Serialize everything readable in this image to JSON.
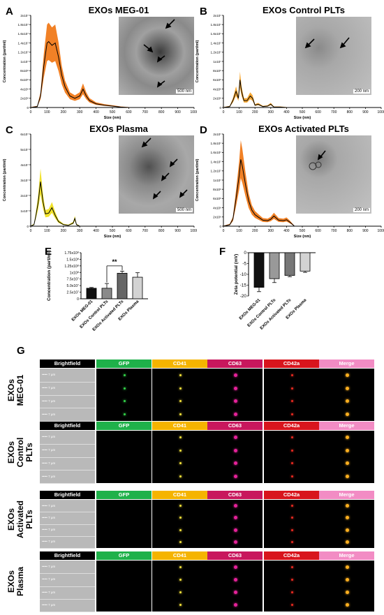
{
  "panels": {
    "A": {
      "letter": "A",
      "title": "EXOs MEG-01",
      "scale": "500 nm"
    },
    "B": {
      "letter": "B",
      "title": "EXOs Control PLTs",
      "scale": "200 nm"
    },
    "C": {
      "letter": "C",
      "title": "EXOs Plasma",
      "scale": "500 nm"
    },
    "D": {
      "letter": "D",
      "title": "EXOs Activated PLTs",
      "scale": "200 nm"
    },
    "E": {
      "letter": "E"
    },
    "F": {
      "letter": "F"
    },
    "G": {
      "letter": "G"
    }
  },
  "nta_axes": {
    "xlabel": "Size (nm)",
    "ylabel": "Concentration (part/ml)",
    "xticks": [
      "0",
      "100",
      "200",
      "300",
      "400",
      "500",
      "600",
      "700",
      "800",
      "900",
      "1000"
    ],
    "yticks_A": [
      "0",
      "2x10⁶",
      "4x10⁶",
      "6x10⁶",
      "8x10⁶",
      "1x10⁷",
      "1.2x10⁷",
      "1.4x10⁷",
      "1.6x10⁷",
      "1.8x10⁷",
      "2x10⁷"
    ],
    "yticks_C": [
      "0",
      "1x10⁷",
      "2x10⁷",
      "3x10⁷",
      "4x10⁷",
      "5x10⁷",
      "6x10⁷"
    ]
  },
  "chart_data": [
    {
      "type": "line",
      "panel": "A",
      "title": "EXOs MEG-01",
      "xlabel": "Size (nm)",
      "ylabel": "Concentration (part/ml)",
      "xlim": [
        0,
        1000
      ],
      "ylim": [
        0,
        20000000
      ],
      "color": "#f07a1a",
      "x": [
        0,
        40,
        60,
        80,
        100,
        110,
        130,
        150,
        170,
        190,
        210,
        240,
        270,
        300,
        320,
        340,
        360,
        400,
        450,
        500,
        550,
        600
      ],
      "y": [
        0,
        200000,
        2500000,
        9000000,
        14000000,
        14300000,
        13500000,
        14000000,
        11000000,
        7000000,
        4500000,
        2500000,
        2000000,
        2500000,
        4000000,
        2500000,
        1500000,
        800000,
        500000,
        300000,
        100000,
        0
      ]
    },
    {
      "type": "line",
      "panel": "B",
      "title": "EXOs Control PLTs",
      "xlabel": "Size (nm)",
      "ylabel": "Concentration (part/ml)",
      "xlim": [
        0,
        1000
      ],
      "ylim": [
        0,
        20000000
      ],
      "color": "#f5a32a",
      "x": [
        0,
        40,
        60,
        80,
        95,
        105,
        115,
        130,
        150,
        170,
        185,
        200,
        220,
        250,
        280,
        300,
        320,
        360,
        400
      ],
      "y": [
        0,
        200000,
        1500000,
        3500000,
        2000000,
        6000000,
        3500000,
        1500000,
        1500000,
        2500000,
        2000000,
        500000,
        700000,
        200000,
        300000,
        700000,
        100000,
        100000,
        0
      ]
    },
    {
      "type": "line",
      "panel": "C",
      "title": "EXOs Plasma",
      "xlabel": "Size (nm)",
      "ylabel": "Concentration (part/ml)",
      "xlim": [
        0,
        1000
      ],
      "ylim": [
        0,
        60000000
      ],
      "color": "#f0e020",
      "x": [
        0,
        20,
        30,
        45,
        60,
        75,
        90,
        110,
        130,
        150,
        170,
        200,
        230,
        260,
        270,
        280,
        300
      ],
      "y": [
        0,
        1000000,
        6000000,
        15000000,
        29000000,
        16000000,
        8000000,
        8500000,
        12000000,
        7000000,
        3000000,
        1000000,
        500000,
        2000000,
        5000000,
        1000000,
        0
      ]
    },
    {
      "type": "line",
      "panel": "D",
      "title": "EXOs Activated PLTs",
      "xlabel": "Size (nm)",
      "ylabel": "Concentration (part/ml)",
      "xlim": [
        0,
        1000
      ],
      "ylim": [
        0,
        20000000
      ],
      "color": "#f07a1a",
      "x": [
        0,
        40,
        60,
        80,
        100,
        110,
        120,
        140,
        160,
        180,
        200,
        220,
        250,
        280,
        300,
        320,
        350,
        380,
        400,
        420,
        450
      ],
      "y": [
        0,
        300000,
        1500000,
        6000000,
        11000000,
        14500000,
        13000000,
        9000000,
        5500000,
        3500000,
        2500000,
        2000000,
        1300000,
        1200000,
        1500000,
        2200000,
        1300000,
        1200000,
        1400000,
        900000,
        0
      ]
    },
    {
      "type": "bar",
      "panel": "E",
      "ylabel": "Concentration (part/ml)",
      "categories": [
        "EXOs MEG-01",
        "EXOs Control PLTs",
        "EXOs Activated PLTs",
        "EXOs Plasma"
      ],
      "values": [
        40000000,
        40000000,
        97000000,
        82000000
      ],
      "errors": [
        3000000,
        18000000,
        8000000,
        17000000
      ],
      "colors": [
        "#111111",
        "#8a8a8a",
        "#666666",
        "#d3d3d3"
      ],
      "ylim": [
        0,
        175000000
      ],
      "yticks": [
        "0",
        "2.5x10⁷",
        "5.0x10⁷",
        "7.5x10⁷",
        "1x10⁸",
        "1.25x10⁸",
        "1.5x10⁸",
        "1.75x10⁸"
      ],
      "annotation": "**"
    },
    {
      "type": "bar",
      "panel": "F",
      "ylabel": "Zeta potential (mV)",
      "categories": [
        "EXOs MEG-01",
        "EXOs Control PLTs",
        "EXOs Activated PLTs",
        "EXOs Plasma"
      ],
      "values": [
        -16,
        -12,
        -10.5,
        -8.5
      ],
      "errors": [
        2,
        1.8,
        0.6,
        0.6
      ],
      "colors": [
        "#111111",
        "#999999",
        "#777777",
        "#d3d3d3"
      ],
      "ylim": [
        -20,
        0
      ],
      "yticks": [
        "0",
        "-5",
        "-10",
        "-15",
        "-20"
      ]
    }
  ],
  "imaging": {
    "channels": [
      {
        "name": "Brightfield",
        "color": "#000000"
      },
      {
        "name": "GFP",
        "color": "#1fb14a"
      },
      {
        "name": "CD41",
        "color": "#f5b400"
      },
      {
        "name": "CD63",
        "color": "#c8175d"
      },
      {
        "name": "CD42a",
        "color": "#d8151d"
      },
      {
        "name": "Merge",
        "color": "#f28cc4"
      }
    ],
    "scale_label": "7 μm",
    "groups": [
      {
        "label_l1": "EXOs",
        "label_l2": "MEG-01",
        "label_l3": ""
      },
      {
        "label_l1": "EXOs",
        "label_l2": "Control",
        "label_l3": "PLTs"
      },
      {
        "label_l1": "EXOs",
        "label_l2": "Activated",
        "label_l3": "PLTs"
      },
      {
        "label_l1": "EXOs",
        "label_l2": "Plasma",
        "label_l3": ""
      }
    ]
  }
}
